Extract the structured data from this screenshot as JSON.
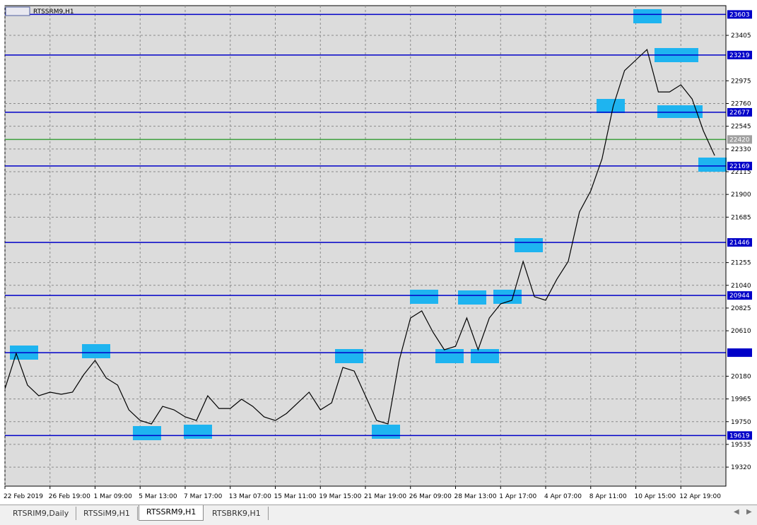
{
  "chart_data": {
    "type": "line",
    "title": "RTSSRM9,H1",
    "color": "#000000",
    "grid": true,
    "ylim": [
      19140,
      23686
    ],
    "yticks": [
      23405,
      22975,
      22760,
      22545,
      22330,
      22115,
      21900,
      21685,
      21255,
      21040,
      20825,
      20610,
      20180,
      19965,
      19750,
      19535,
      19320
    ],
    "categories": [
      "22 Feb 2019",
      null,
      null,
      null,
      "26 Feb 19:00",
      null,
      null,
      null,
      "1 Mar 09:00",
      null,
      null,
      null,
      "5 Mar 13:00",
      null,
      null,
      null,
      "7 Mar 17:00",
      null,
      null,
      null,
      "13 Mar 07:00",
      null,
      null,
      null,
      "15 Mar 11:00",
      null,
      null,
      null,
      "19 Mar 15:00",
      null,
      null,
      null,
      "21 Mar 19:00",
      null,
      null,
      null,
      "26 Mar 09:00",
      null,
      null,
      null,
      "28 Mar 13:00",
      null,
      null,
      null,
      "1 Apr 17:00",
      null,
      null,
      null,
      "4 Apr 07:00",
      null,
      null,
      null,
      "8 Apr 11:00",
      null,
      null,
      null,
      "10 Apr 15:00",
      null,
      null,
      null,
      "12 Apr 19:00",
      null,
      null,
      null
    ],
    "values": [
      20062,
      20396,
      20096,
      19995,
      20029,
      20009,
      20029,
      20196,
      20330,
      20162,
      20096,
      19862,
      19761,
      19728,
      19895,
      19862,
      19795,
      19761,
      19995,
      19875,
      19875,
      19962,
      19895,
      19795,
      19761,
      19828,
      19928,
      20029,
      19862,
      19928,
      20263,
      20229,
      19995,
      19761,
      19728,
      20330,
      20731,
      20798,
      20597,
      20430,
      20463,
      20731,
      20430,
      20731,
      20865,
      20898,
      21266,
      20932,
      20898,
      21098,
      21266,
      21734,
      21934,
      22235,
      22736,
      23071,
      23171,
      23271,
      22870,
      22870,
      22937,
      22803,
      22502,
      22268
    ],
    "levels": [
      {
        "value": 23603,
        "color": "#0000c8",
        "tag": true
      },
      {
        "value": 23219,
        "color": "#0000c8",
        "tag": true
      },
      {
        "value": 22677,
        "color": "#0000c8",
        "tag": true
      },
      {
        "value": 22420,
        "color": "#3ca03c",
        "tag": true
      },
      {
        "value": 22169,
        "color": "#0000c8",
        "tag": true
      },
      {
        "value": 21446,
        "color": "#0000c8",
        "tag": true
      },
      {
        "value": 20944,
        "color": "#0000c8",
        "tag": true
      },
      {
        "value": 20403,
        "color": "#0000c8",
        "tag": false
      },
      {
        "value": 19619,
        "color": "#0000c8",
        "tag": true
      }
    ]
  },
  "tabs": [
    "RTSRIM9,Daily",
    "RTSSiM9,H1",
    "RTSSRM9,H1",
    "RTSBRK9,H1"
  ]
}
